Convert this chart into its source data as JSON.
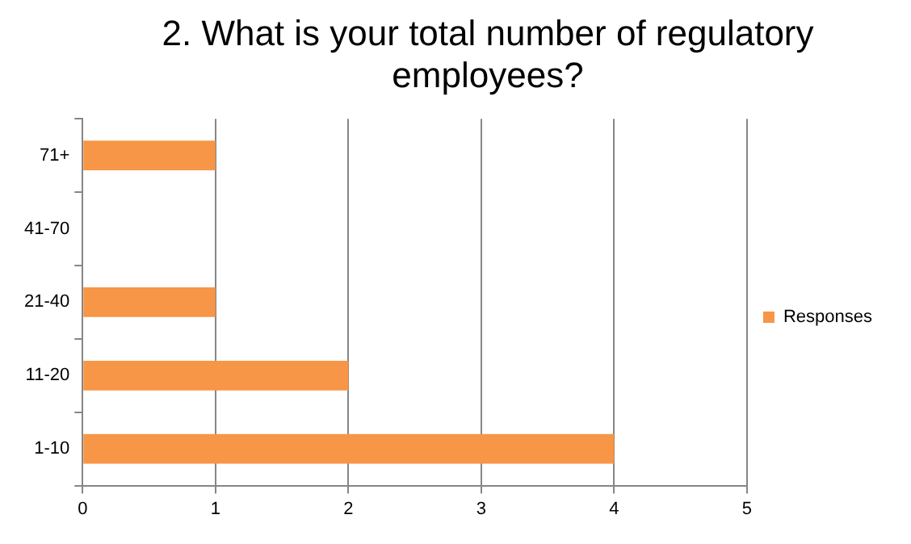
{
  "chart_data": {
    "type": "bar",
    "orientation": "horizontal",
    "title": "2. What is your total number of regulatory employees?",
    "categories": [
      "71+",
      "41-70",
      "21-40",
      "11-20",
      "1-10"
    ],
    "series": [
      {
        "name": "Responses",
        "color": "#f79646",
        "values": [
          1,
          0,
          1,
          2,
          4
        ]
      }
    ],
    "xlim": [
      0,
      5
    ],
    "xticks": [
      0,
      1,
      2,
      3,
      4,
      5
    ],
    "grid": "x",
    "legend": "right"
  }
}
